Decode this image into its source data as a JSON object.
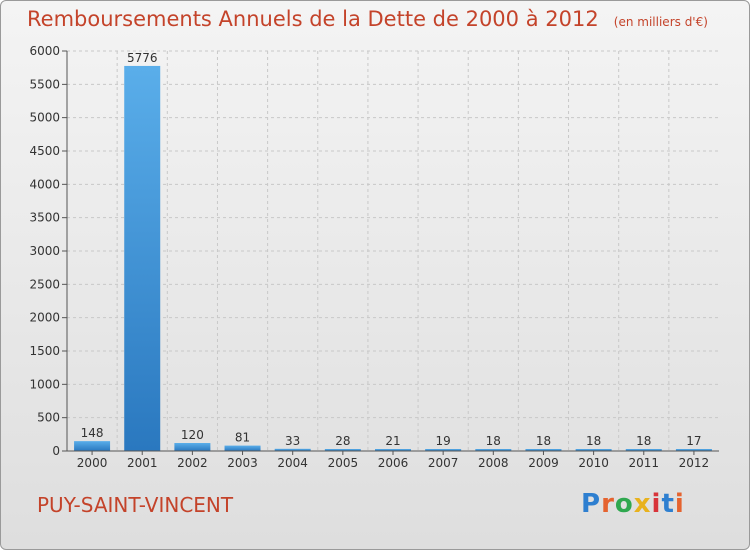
{
  "header": {
    "title": "Remboursements Annuels de la Dette de 2000 à 2012",
    "subtitle": "(en milliers d'€)"
  },
  "footer": {
    "commune": "PUY-SAINT-VINCENT",
    "logo": "Proxiti"
  },
  "colors": {
    "title": "#c4432a",
    "bar_light": "#5aaeea",
    "bar_dark": "#2a78bf",
    "grid": "#c8c8c8"
  },
  "chart_data": {
    "type": "bar",
    "title": "Remboursements Annuels de la Dette de 2000 à 2012",
    "subtitle": "(en milliers d'€)",
    "xlabel": "",
    "ylabel": "",
    "categories": [
      "2000",
      "2001",
      "2002",
      "2003",
      "2004",
      "2005",
      "2006",
      "2007",
      "2008",
      "2009",
      "2010",
      "2011",
      "2012"
    ],
    "values": [
      148,
      5776,
      120,
      81,
      33,
      28,
      21,
      19,
      18,
      18,
      18,
      18,
      17
    ],
    "data_labels": [
      "148",
      "5776",
      "120",
      "81",
      "33",
      "28",
      "21",
      "19",
      "18",
      "18",
      "18",
      "18",
      "17"
    ],
    "yticks": [
      0,
      500,
      1000,
      1500,
      2000,
      2500,
      3000,
      3500,
      4000,
      4500,
      5000,
      5500,
      6000
    ],
    "ylim": [
      0,
      6000
    ],
    "grid": true,
    "legend": "none"
  }
}
